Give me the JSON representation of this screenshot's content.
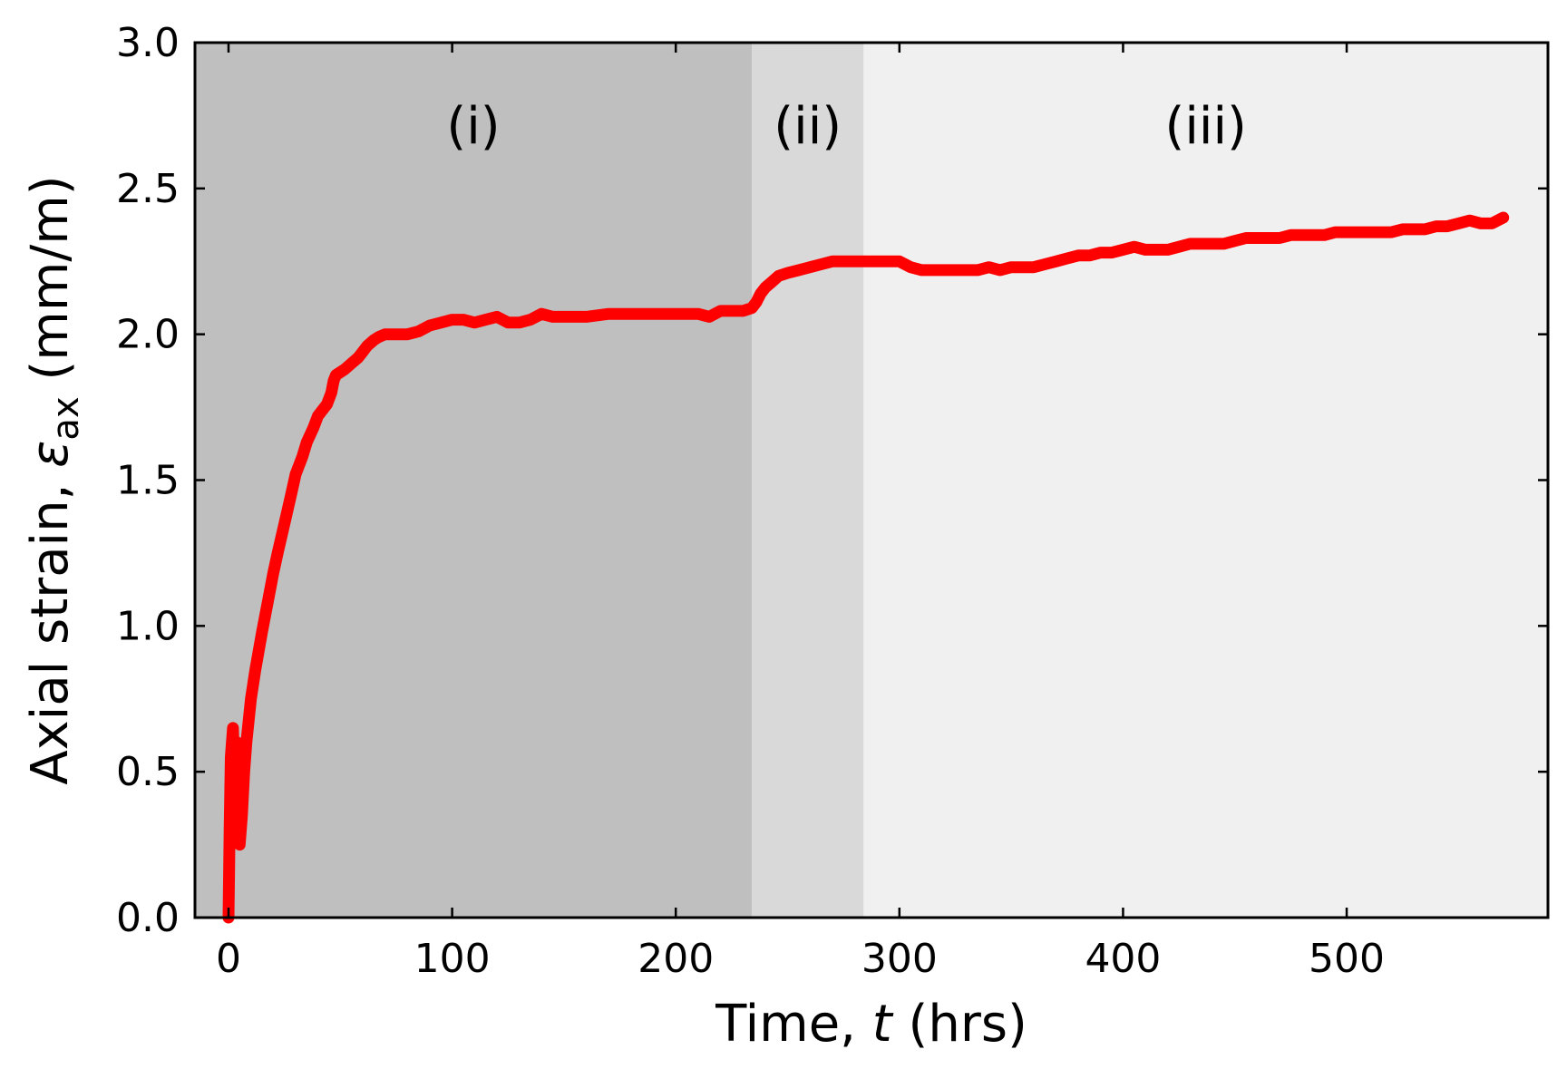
{
  "chart_data": {
    "type": "line",
    "title": "",
    "xlabel": {
      "prefix": "Time, ",
      "symbol": "t",
      "suffix": " (hrs)"
    },
    "ylabel": {
      "prefix": "Axial strain, ",
      "symbol": "ε",
      "subscript": "ax",
      "suffix": " (mm/m)"
    },
    "xlim": [
      -15,
      590
    ],
    "ylim": [
      0,
      3.0
    ],
    "x_ticks": [
      0,
      100,
      200,
      300,
      400,
      500
    ],
    "x_tick_labels": [
      "0",
      "100",
      "200",
      "300",
      "400",
      "500"
    ],
    "y_ticks": [
      0,
      0.5,
      1.0,
      1.5,
      2.0,
      2.5,
      3.0
    ],
    "y_tick_labels": [
      "0.0",
      "0.5",
      "1.0",
      "1.5",
      "2.0",
      "2.5",
      "3.0"
    ],
    "grid": false,
    "regions": [
      {
        "label": "(i)",
        "x_start": -15,
        "x_end": 234,
        "color": "#bfbfbf"
      },
      {
        "label": "(ii)",
        "x_start": 234,
        "x_end": 284,
        "color": "#d9d9d9"
      },
      {
        "label": "(iii)",
        "x_start": 284,
        "x_end": 590,
        "color": "#f0f0f0"
      }
    ],
    "series": [
      {
        "color": "#ff0000",
        "x": [
          0,
          0.5,
          1,
          2,
          3,
          4,
          5,
          6,
          7,
          8,
          10,
          12,
          15,
          18,
          20,
          22,
          25,
          28,
          30,
          33,
          35,
          38,
          40,
          42,
          44,
          45,
          46,
          47,
          48,
          50,
          52,
          55,
          58,
          60,
          62,
          65,
          67,
          70,
          75,
          80,
          85,
          90,
          95,
          100,
          105,
          110,
          115,
          120,
          125,
          130,
          135,
          140,
          145,
          150,
          160,
          170,
          180,
          190,
          200,
          210,
          215,
          220,
          225,
          230,
          234,
          236,
          238,
          240,
          243,
          246,
          250,
          255,
          260,
          265,
          270,
          275,
          280,
          285,
          290,
          295,
          300,
          305,
          310,
          315,
          320,
          325,
          330,
          335,
          340,
          345,
          350,
          355,
          360,
          365,
          370,
          375,
          380,
          385,
          390,
          395,
          400,
          405,
          410,
          415,
          420,
          425,
          430,
          435,
          440,
          445,
          450,
          455,
          460,
          465,
          470,
          475,
          480,
          485,
          490,
          495,
          500,
          505,
          510,
          515,
          520,
          525,
          530,
          535,
          540,
          545,
          550,
          555,
          560,
          565,
          570
        ],
        "y": [
          0.0,
          0.3,
          0.55,
          0.65,
          0.4,
          0.6,
          0.25,
          0.35,
          0.5,
          0.6,
          0.75,
          0.85,
          0.98,
          1.1,
          1.18,
          1.25,
          1.35,
          1.45,
          1.52,
          1.58,
          1.63,
          1.68,
          1.72,
          1.74,
          1.76,
          1.78,
          1.8,
          1.84,
          1.86,
          1.87,
          1.88,
          1.9,
          1.92,
          1.94,
          1.96,
          1.98,
          1.99,
          2.0,
          2.0,
          2.0,
          2.01,
          2.03,
          2.04,
          2.05,
          2.05,
          2.04,
          2.05,
          2.06,
          2.04,
          2.04,
          2.05,
          2.07,
          2.06,
          2.06,
          2.06,
          2.07,
          2.07,
          2.07,
          2.07,
          2.07,
          2.06,
          2.08,
          2.08,
          2.08,
          2.09,
          2.11,
          2.14,
          2.16,
          2.18,
          2.2,
          2.21,
          2.22,
          2.23,
          2.24,
          2.25,
          2.25,
          2.25,
          2.25,
          2.25,
          2.25,
          2.25,
          2.23,
          2.22,
          2.22,
          2.22,
          2.22,
          2.22,
          2.22,
          2.23,
          2.22,
          2.23,
          2.23,
          2.23,
          2.24,
          2.25,
          2.26,
          2.27,
          2.27,
          2.28,
          2.28,
          2.29,
          2.3,
          2.29,
          2.29,
          2.29,
          2.3,
          2.31,
          2.31,
          2.31,
          2.31,
          2.32,
          2.33,
          2.33,
          2.33,
          2.33,
          2.34,
          2.34,
          2.34,
          2.34,
          2.35,
          2.35,
          2.35,
          2.35,
          2.35,
          2.35,
          2.36,
          2.36,
          2.36,
          2.37,
          2.37,
          2.38,
          2.39,
          2.38,
          2.38,
          2.4
        ]
      }
    ]
  }
}
